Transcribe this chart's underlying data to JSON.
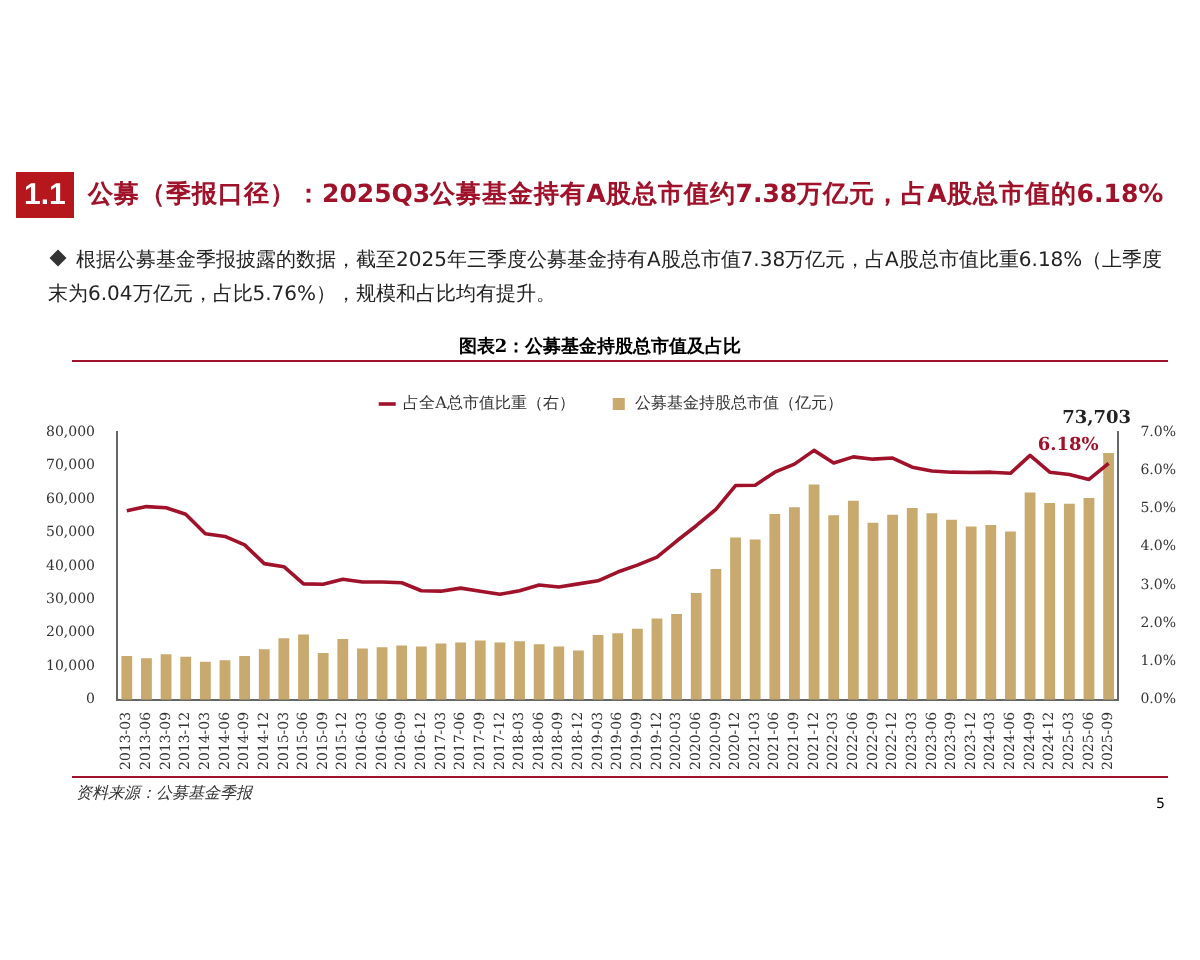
{
  "chart_data": {
    "type": "bar",
    "title": "公募（季报口径）：2025Q3公募基金持有A股总市值约7.38万亿元，占A股总市值的6.18%",
    "subtitle": "根据公募基金季报披露的数据，截至2025年三季度公募基金持有A股总市值7.38万亿元，占A股总市值比重6.18%（上季度末为6.04万亿元，占比5.76%），规模和占比均有提升。",
    "annotations": [
      "1.1",
      "图表2：公募基金持股总市值及占比",
      "资料来源：公募基金季报",
      "5"
    ],
    "categories": [
      "2013-03",
      "2013-06",
      "2013-09",
      "2013-12",
      "2014-03",
      "2014-06",
      "2014-09",
      "2014-12",
      "2015-03",
      "2015-06",
      "2015-09",
      "2015-12",
      "2016-03",
      "2016-06",
      "2016-09",
      "2016-12",
      "2017-03",
      "2017-06",
      "2017-09",
      "2017-12",
      "2018-03",
      "2018-06",
      "2018-09",
      "2018-12",
      "2019-03",
      "2019-06",
      "2019-09",
      "2019-12",
      "2020-03",
      "2020-06",
      "2020-09",
      "2020-12",
      "2021-03",
      "2021-06",
      "2021-09",
      "2021-12",
      "2022-03",
      "2022-06",
      "2022-09",
      "2022-12",
      "2023-03",
      "2023-06",
      "2023-09",
      "2023-12",
      "2024-03",
      "2024-06",
      "2024-09",
      "2024-12",
      "2025-03",
      "2025-06",
      "2025-09"
    ],
    "series": [
      {
        "name": "公募基金持股总市值（亿元）",
        "color": "#c8a96e",
        "values": [
          13100,
          12400,
          13600,
          12900,
          11400,
          11800,
          13100,
          15100,
          18400,
          19500,
          14000,
          18200,
          15300,
          15700,
          16200,
          15900,
          16800,
          17100,
          17700,
          17100,
          17500,
          16600,
          15900,
          14700,
          19400,
          19900,
          21200,
          24300,
          25600,
          31900,
          39100,
          48500,
          47900,
          55500,
          57500,
          64300,
          55100,
          59500,
          52900,
          55300,
          57300,
          55700,
          53800,
          51800,
          52200,
          50300,
          61900,
          58800,
          58600,
          60300,
          73703
        ],
        "value_labels": [
          null,
          null,
          null,
          null,
          null,
          null,
          null,
          null,
          null,
          null,
          null,
          null,
          null,
          null,
          null,
          null,
          null,
          null,
          null,
          null,
          null,
          null,
          null,
          null,
          null,
          null,
          null,
          null,
          null,
          null,
          null,
          null,
          null,
          null,
          null,
          null,
          null,
          null,
          null,
          null,
          null,
          null,
          null,
          null,
          null,
          null,
          null,
          null,
          null,
          null,
          "73,703"
        ]
      },
      {
        "name": "占全A总市值比重（右）",
        "type": "line",
        "axis": "y2",
        "color": "#a0112a",
        "values": [
          4.94,
          5.05,
          5.02,
          4.85,
          4.34,
          4.27,
          4.05,
          3.56,
          3.48,
          3.03,
          3.02,
          3.15,
          3.08,
          3.08,
          3.06,
          2.85,
          2.84,
          2.92,
          2.84,
          2.76,
          2.85,
          3.0,
          2.95,
          3.03,
          3.11,
          3.34,
          3.52,
          3.73,
          4.15,
          4.55,
          4.98,
          5.6,
          5.61,
          5.95,
          6.16,
          6.52,
          6.19,
          6.35,
          6.29,
          6.32,
          6.08,
          5.98,
          5.95,
          5.94,
          5.95,
          5.92,
          6.39,
          5.95,
          5.89,
          5.76,
          6.18
        ],
        "value_labels": [
          null,
          null,
          null,
          null,
          null,
          null,
          null,
          null,
          null,
          null,
          null,
          null,
          null,
          null,
          null,
          null,
          null,
          null,
          null,
          null,
          null,
          null,
          null,
          null,
          null,
          null,
          null,
          null,
          null,
          null,
          null,
          null,
          null,
          null,
          null,
          null,
          null,
          null,
          null,
          null,
          null,
          null,
          null,
          null,
          null,
          null,
          null,
          null,
          null,
          null,
          "6.18%"
        ]
      }
    ],
    "ylim": [
      0,
      80000
    ],
    "yticks": [
      {
        "value": 0,
        "label": "0"
      },
      {
        "value": 10000,
        "label": "10,000"
      },
      {
        "value": 20000,
        "label": "20,000"
      },
      {
        "value": 30000,
        "label": "30,000"
      },
      {
        "value": 40000,
        "label": "40,000"
      },
      {
        "value": 50000,
        "label": "50,000"
      },
      {
        "value": 60000,
        "label": "60,000"
      },
      {
        "value": 70000,
        "label": "70,000"
      },
      {
        "value": 80000,
        "label": "80,000"
      }
    ],
    "y2lim": [
      0,
      7
    ],
    "y2ticks": [
      {
        "value": 0,
        "label": "0.0%"
      },
      {
        "value": 1,
        "label": "1.0%"
      },
      {
        "value": 2,
        "label": "2.0%"
      },
      {
        "value": 3,
        "label": "3.0%"
      },
      {
        "value": 4,
        "label": "4.0%"
      },
      {
        "value": 5,
        "label": "5.0%"
      },
      {
        "value": 6,
        "label": "6.0%"
      },
      {
        "value": 7,
        "label": "7.0%"
      }
    ],
    "grid": false,
    "legend": "top",
    "marker": "none",
    "line_style": "solid"
  }
}
